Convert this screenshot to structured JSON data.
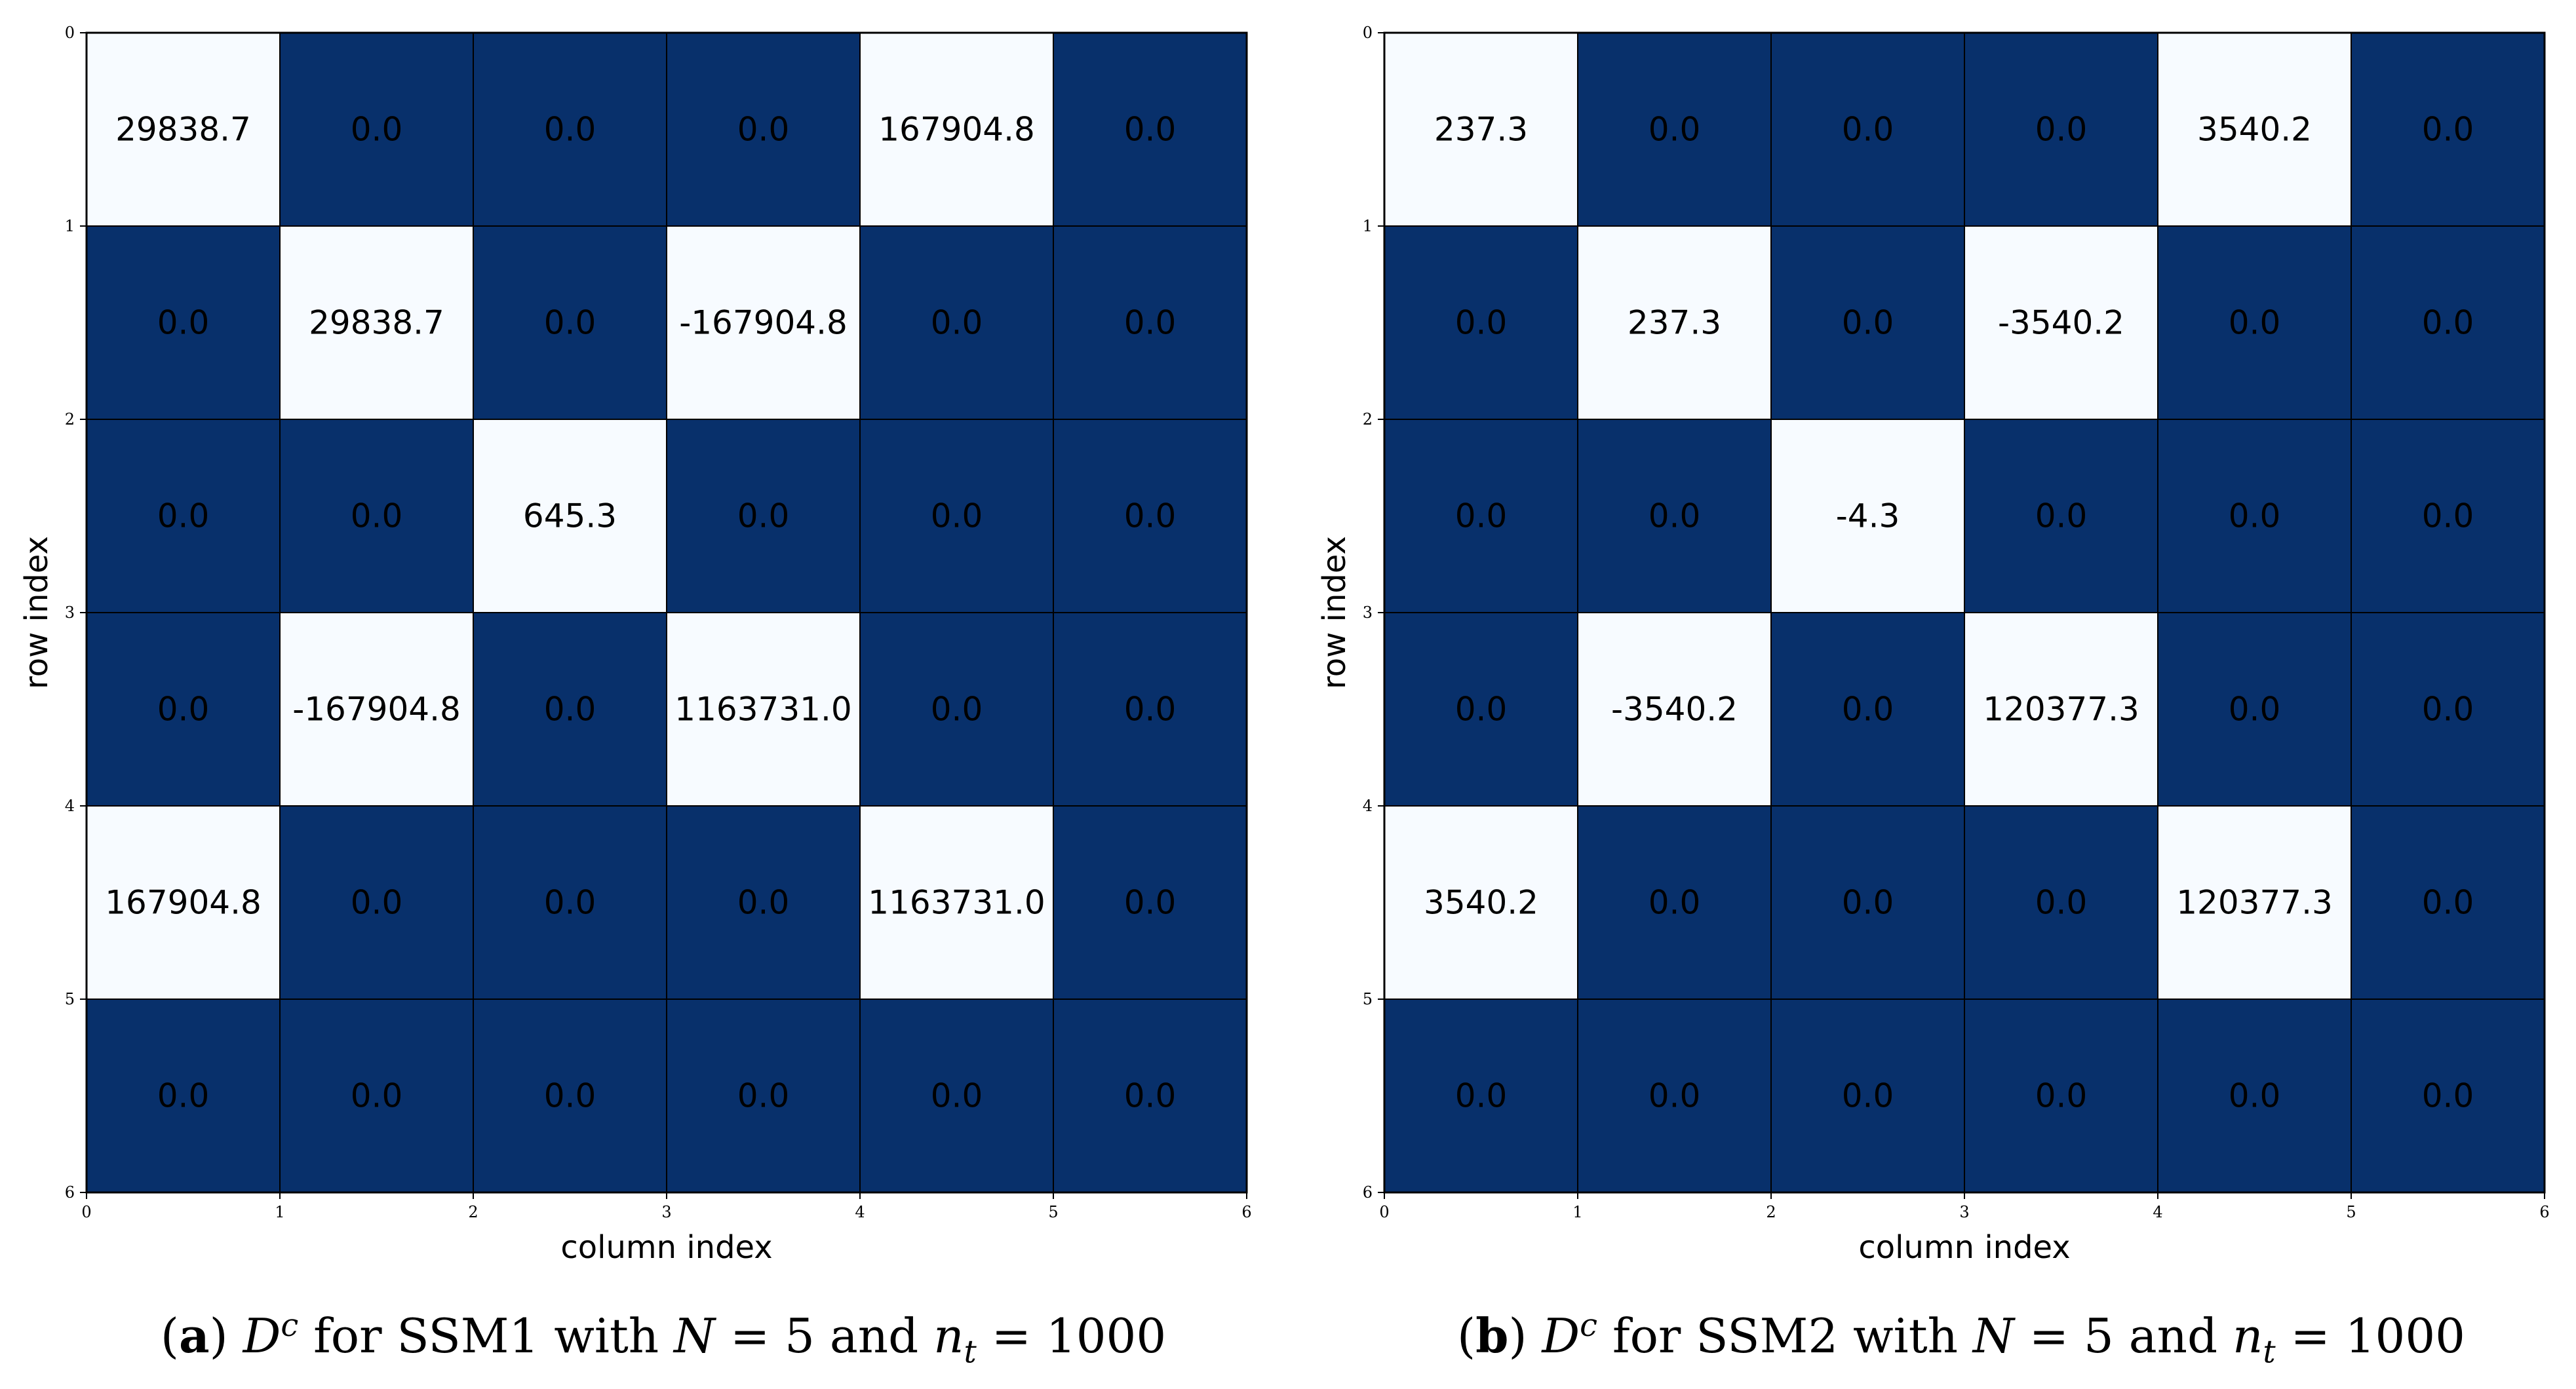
{
  "colors": {
    "dark_cell": "#08306b",
    "light_cell": "#f7fbff",
    "dark_text": "#000000",
    "grid_line": "#000000"
  },
  "chart_data": [
    {
      "type": "heatmap",
      "title": "",
      "xlabel": "column index",
      "ylabel": "row index",
      "x_ticks": [
        "0",
        "1",
        "2",
        "3",
        "4",
        "5",
        "6"
      ],
      "y_ticks": [
        "0",
        "1",
        "2",
        "3",
        "4",
        "5",
        "6"
      ],
      "rows": 6,
      "cols": 6,
      "matrix": [
        [
          "29838.7",
          "0.0",
          "0.0",
          "0.0",
          "167904.8",
          "0.0"
        ],
        [
          "0.0",
          "29838.7",
          "0.0",
          "-167904.8",
          "0.0",
          "0.0"
        ],
        [
          "0.0",
          "0.0",
          "645.3",
          "0.0",
          "0.0",
          "0.0"
        ],
        [
          "0.0",
          "-167904.8",
          "0.0",
          "1163731.0",
          "0.0",
          "0.0"
        ],
        [
          "167904.8",
          "0.0",
          "0.0",
          "0.0",
          "1163731.0",
          "0.0"
        ],
        [
          "0.0",
          "0.0",
          "0.0",
          "0.0",
          "0.0",
          "0.0"
        ]
      ],
      "colormap": "binary: zero = dark, non-zero = light",
      "grid": true
    },
    {
      "type": "heatmap",
      "title": "",
      "xlabel": "column index",
      "ylabel": "row index",
      "x_ticks": [
        "0",
        "1",
        "2",
        "3",
        "4",
        "5",
        "6"
      ],
      "y_ticks": [
        "0",
        "1",
        "2",
        "3",
        "4",
        "5",
        "6"
      ],
      "rows": 6,
      "cols": 6,
      "matrix": [
        [
          "237.3",
          "0.0",
          "0.0",
          "0.0",
          "3540.2",
          "0.0"
        ],
        [
          "0.0",
          "237.3",
          "0.0",
          "-3540.2",
          "0.0",
          "0.0"
        ],
        [
          "0.0",
          "0.0",
          "-4.3",
          "0.0",
          "0.0",
          "0.0"
        ],
        [
          "0.0",
          "-3540.2",
          "0.0",
          "120377.3",
          "0.0",
          "0.0"
        ],
        [
          "3540.2",
          "0.0",
          "0.0",
          "0.0",
          "120377.3",
          "0.0"
        ],
        [
          "0.0",
          "0.0",
          "0.0",
          "0.0",
          "0.0",
          "0.0"
        ]
      ],
      "colormap": "binary: zero = dark, non-zero = light",
      "grid": true
    }
  ],
  "captions": [
    {
      "label": "a",
      "matrix_symbol": "D",
      "superscript": "c",
      "text_model": "for SSM1 with",
      "N_symbol": "N",
      "N_value": "= 5 and",
      "nt_symbol": "n",
      "nt_subscript": "t",
      "nt_value": "= 1000"
    },
    {
      "label": "b",
      "matrix_symbol": "D",
      "superscript": "c",
      "text_model": "for SSM2 with",
      "N_symbol": "N",
      "N_value": "= 5 and",
      "nt_symbol": "n",
      "nt_subscript": "t",
      "nt_value": "= 1000"
    }
  ]
}
